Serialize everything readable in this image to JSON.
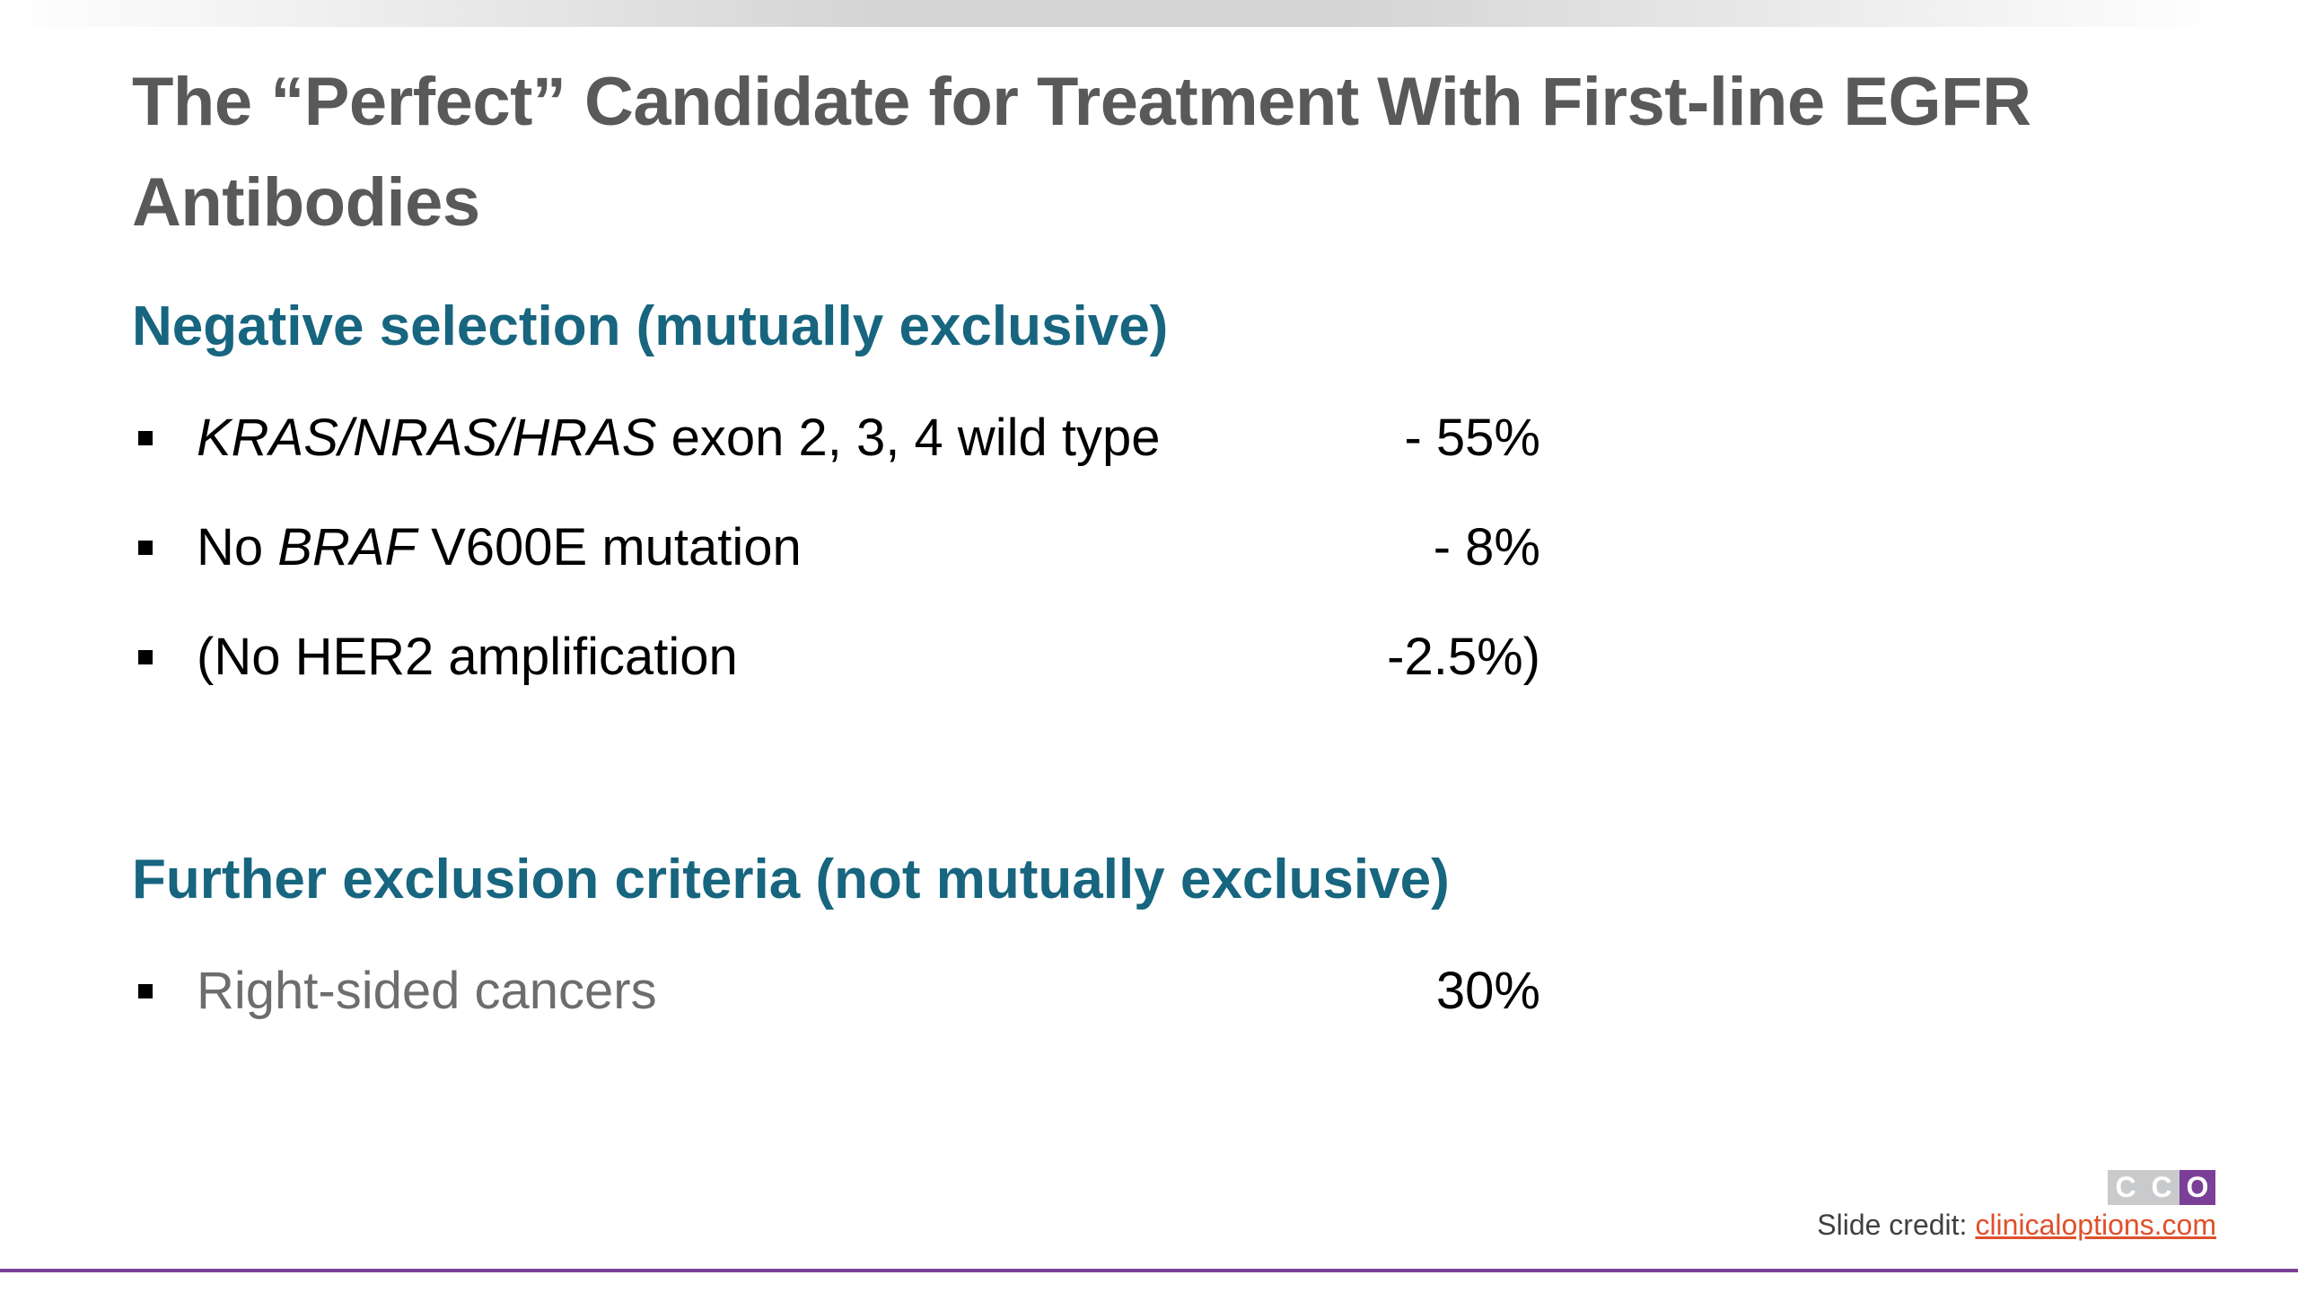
{
  "header": {
    "title": "The “Perfect” Candidate for Treatment With First-line EGFR Antibodies"
  },
  "sections": [
    {
      "heading": "Negative selection (mutually exclusive)",
      "items": [
        {
          "text": [
            {
              "t": "KRAS/NRAS/HRAS",
              "italic": true
            },
            {
              "t": " exon 2, 3, 4 wild type"
            }
          ],
          "value": "- 55%"
        },
        {
          "text": [
            {
              "t": "No "
            },
            {
              "t": "BRAF",
              "italic": true
            },
            {
              "t": " V600E mutation"
            }
          ],
          "value": "- 8%"
        },
        {
          "text": [
            {
              "t": "(No HER2 amplification"
            }
          ],
          "value": "-2.5%)"
        }
      ]
    },
    {
      "heading": "Further exclusion criteria (not mutually exclusive)",
      "items": [
        {
          "text": [
            {
              "t": "Right-sided cancers"
            }
          ],
          "value": "30%",
          "muted": true
        }
      ]
    }
  ],
  "footer": {
    "credit_label": "Slide credit:",
    "credit_link": "clinicaloptions.com",
    "logo": [
      "C",
      "C",
      "O"
    ]
  }
}
